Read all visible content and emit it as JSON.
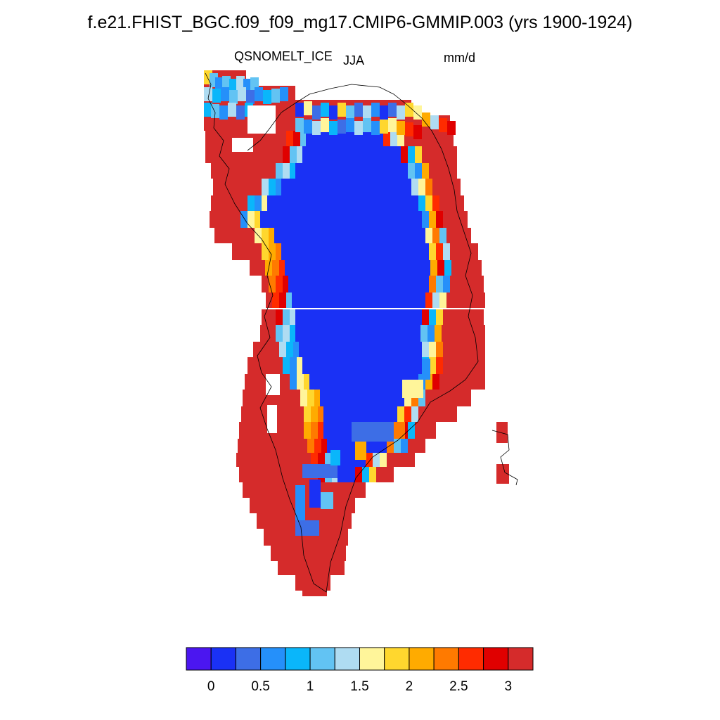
{
  "header": {
    "title": "f.e21.FHIST_BGC.f09_f09_mg17.CMIP6-GMMIP.003 (yrs 1900-1924)",
    "variable": "QSNOMELT_ICE",
    "season": "JJA",
    "units": "mm/d"
  },
  "colorbar": {
    "colors": [
      "#4b16f0",
      "#1a31f5",
      "#3d6ee6",
      "#2590fa",
      "#0ab6fa",
      "#62c3f3",
      "#afdcf2",
      "#fff59a",
      "#ffd72e",
      "#ffab00",
      "#ff7a00",
      "#ff2b00",
      "#e00000",
      "#d52b2b"
    ],
    "labels": [
      "0",
      "0.5",
      "1",
      "1.5",
      "2",
      "2.5",
      "3"
    ]
  },
  "map": {
    "region": "Greenland",
    "colors": {
      "interior": "#1a31f5",
      "margin": "#d52b2b",
      "coastline": "#000000"
    }
  }
}
